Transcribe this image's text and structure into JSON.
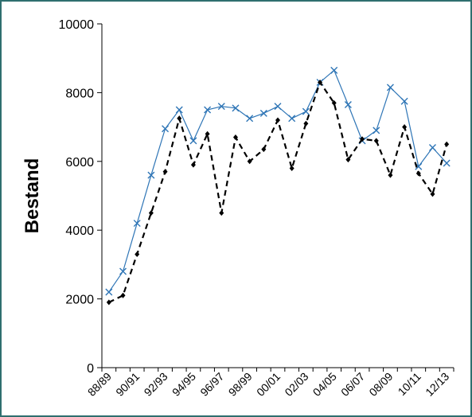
{
  "chart_data": {
    "type": "line",
    "y_label": "Bestand",
    "categories": [
      "88/89",
      null,
      "90/91",
      null,
      "92/93",
      null,
      "94/95",
      null,
      "96/97",
      null,
      "98/99",
      null,
      "00/01",
      null,
      "02/03",
      null,
      "04/05",
      null,
      "06/07",
      null,
      "08/09",
      null,
      "10/11",
      null,
      "12/13"
    ],
    "series": [
      {
        "color": "#2e75b6",
        "marker": "x",
        "dash": false,
        "values": [
          2200,
          2800,
          4200,
          5600,
          6950,
          7500,
          6600,
          7500,
          7600,
          7550,
          7250,
          7400,
          7600,
          7250,
          7450,
          8300,
          8650,
          7650,
          6600,
          6900,
          8150,
          7750,
          5850,
          6400,
          5950
        ]
      },
      {
        "color": "#000000",
        "marker": "diamond",
        "dash": true,
        "values": [
          1900,
          2100,
          3300,
          4500,
          5700,
          7250,
          5900,
          6800,
          4500,
          6700,
          6000,
          6350,
          7200,
          5800,
          7100,
          8300,
          7700,
          6050,
          6650,
          6600,
          5600,
          7000,
          5650,
          5050,
          6500
        ]
      }
    ],
    "ylim": [
      0,
      10000
    ],
    "yticks": [
      0,
      2000,
      4000,
      6000,
      8000,
      10000
    ],
    "grid": false
  }
}
